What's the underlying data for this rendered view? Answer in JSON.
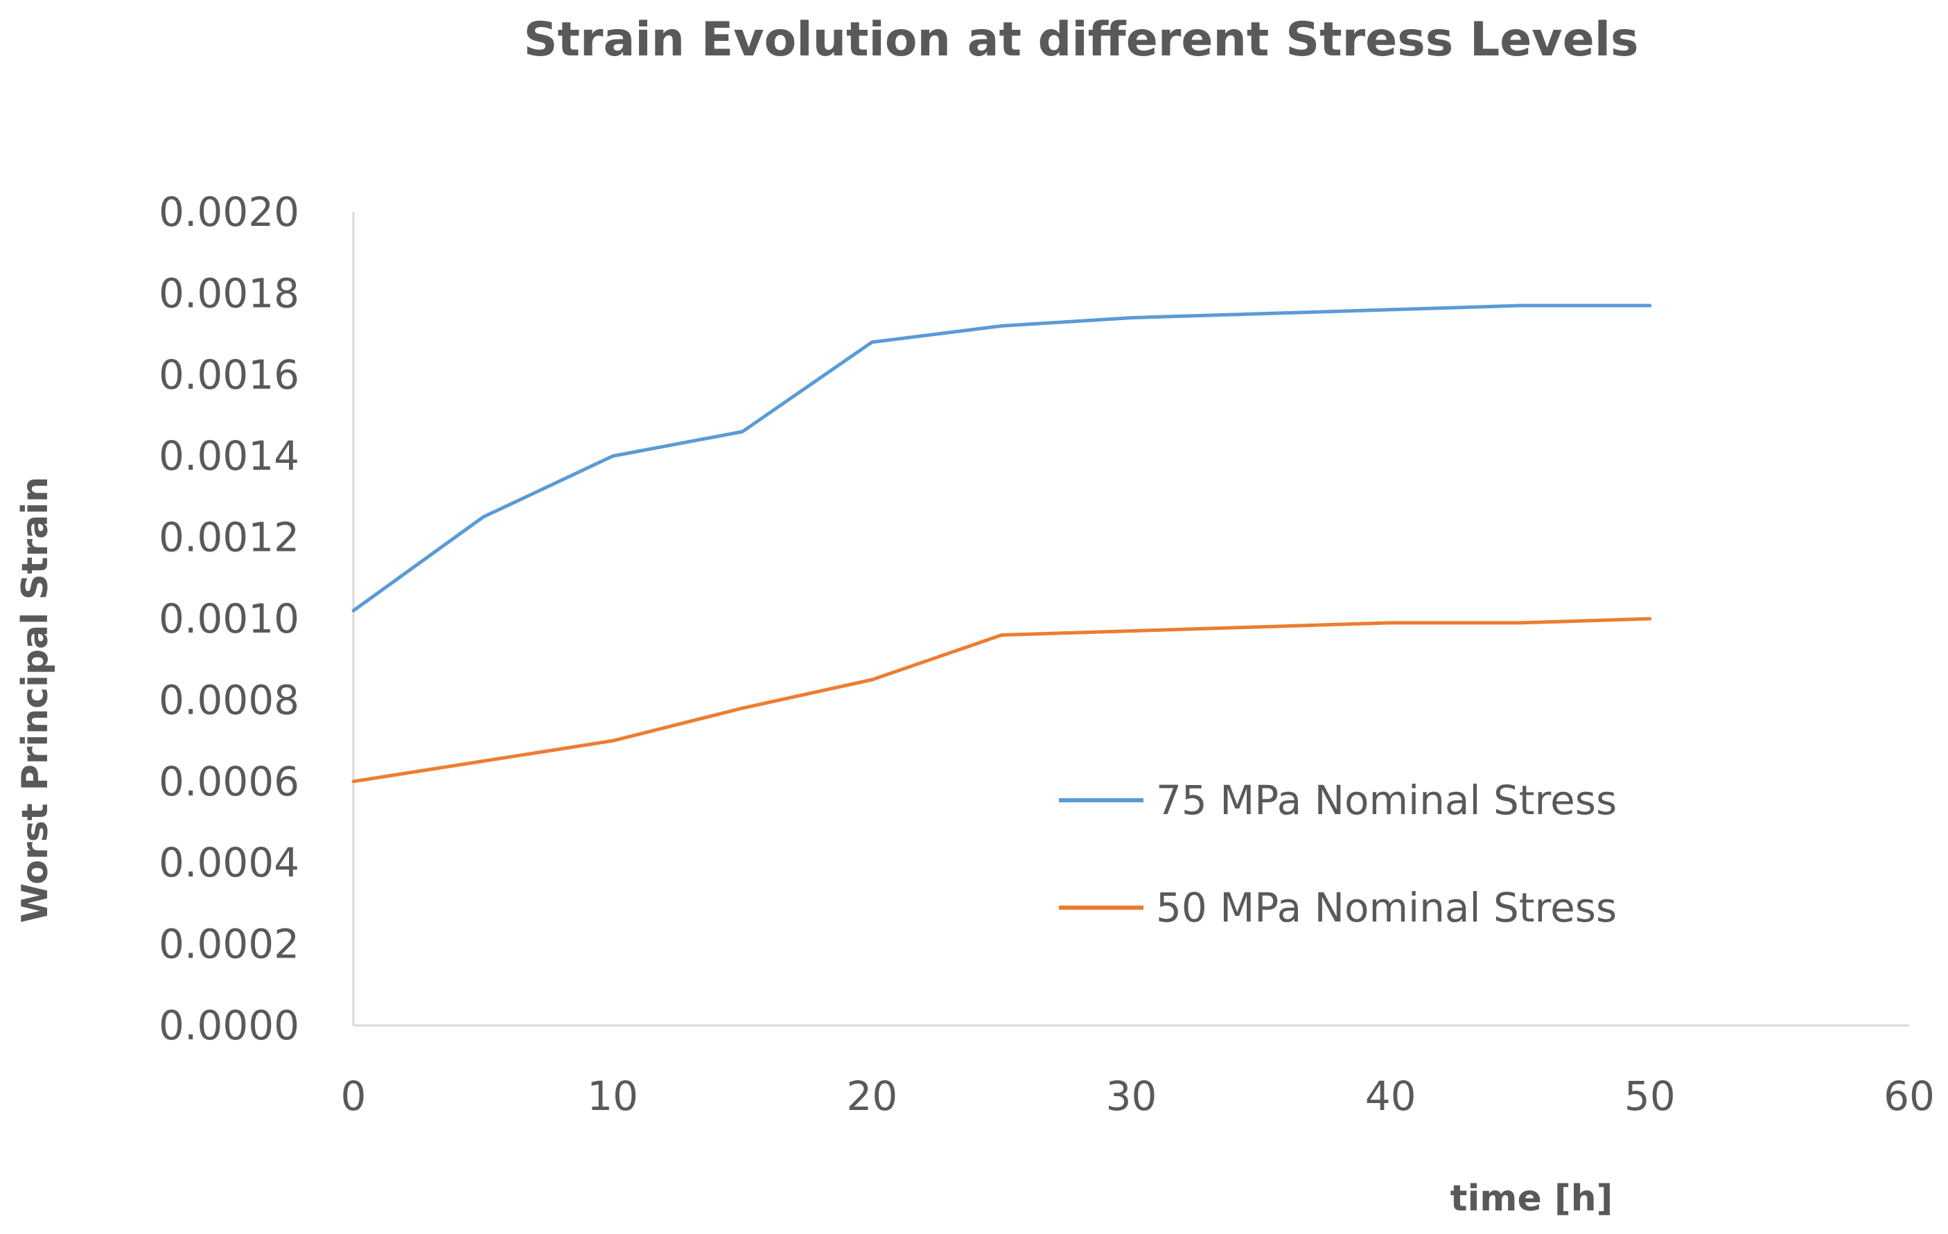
{
  "chart_data": {
    "type": "line",
    "title": "Strain Evolution at different Stress Levels",
    "xlabel": "time [h]",
    "ylabel": "Worst Principal Strain",
    "xlim": [
      0,
      60
    ],
    "ylim": [
      0,
      0.002
    ],
    "x_ticks": [
      "0",
      "10",
      "20",
      "30",
      "40",
      "50",
      "60"
    ],
    "y_ticks": [
      "0.0000",
      "0.0002",
      "0.0004",
      "0.0006",
      "0.0008",
      "0.0010",
      "0.0012",
      "0.0014",
      "0.0016",
      "0.0018",
      "0.0020"
    ],
    "grid": false,
    "legend_position": "center-right",
    "x": [
      0,
      5,
      10,
      15,
      20,
      25,
      30,
      35,
      40,
      45,
      50
    ],
    "series": [
      {
        "name": "75 MPa Nominal Stress",
        "color": "#5b9bd5",
        "values": [
          0.00102,
          0.00125,
          0.0014,
          0.00146,
          0.00168,
          0.00172,
          0.00174,
          0.00175,
          0.00176,
          0.00177,
          0.00177
        ]
      },
      {
        "name": "50 MPa Nominal Stress",
        "color": "#ed7d31",
        "values": [
          0.0006,
          0.00065,
          0.0007,
          0.00078,
          0.00085,
          0.00096,
          0.00097,
          0.00098,
          0.00099,
          0.00099,
          0.001
        ]
      }
    ]
  }
}
